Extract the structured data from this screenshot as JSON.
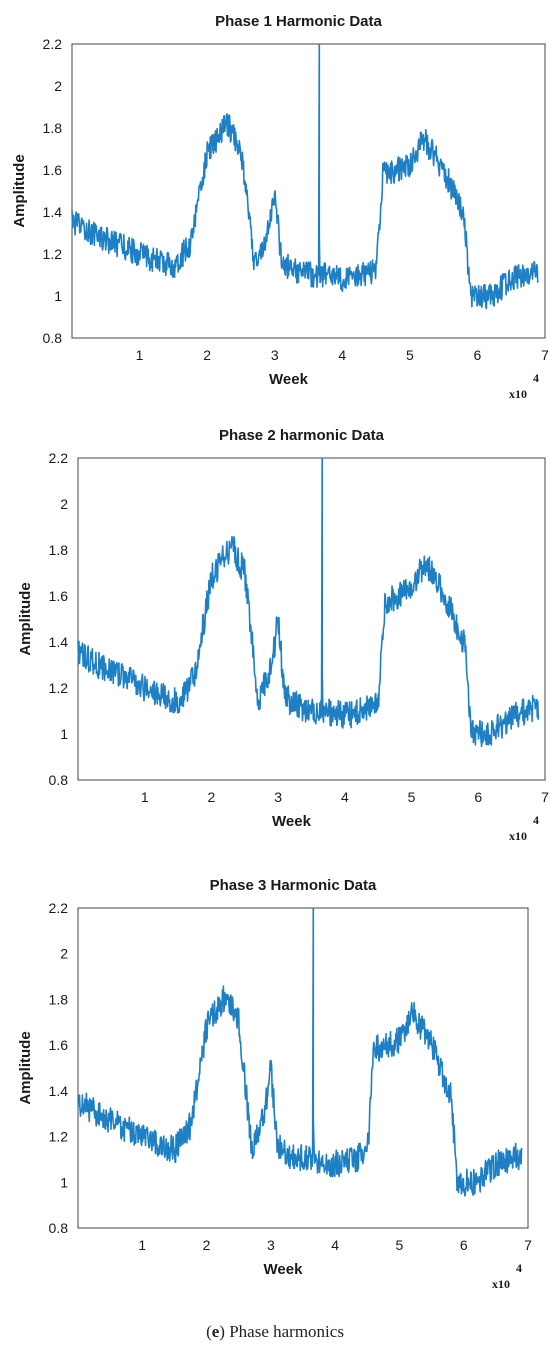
{
  "chart_data": [
    {
      "type": "line",
      "title": "Phase 1 Harmonic Data",
      "xlabel": "Week",
      "ylabel": "Amplitude",
      "x_multiplier": "x10",
      "x_multiplier_exp": "4",
      "xlim": [
        0,
        7
      ],
      "ylim": [
        0.8,
        2.2
      ],
      "xticks": [
        "1",
        "2",
        "3",
        "4",
        "5",
        "6",
        "7"
      ],
      "yticks": [
        "0.8",
        "1",
        "1.2",
        "1.4",
        "1.6",
        "1.8",
        "2",
        "2.2"
      ],
      "grid": false,
      "color": "#1f7fc4",
      "series": [
        {
          "x": [
            0,
            0.5,
            1.0,
            1.5,
            1.75,
            2.0,
            2.3,
            2.5,
            2.7,
            2.9,
            3.0,
            3.1,
            3.3,
            3.6,
            3.66,
            3.7,
            4.0,
            4.5,
            4.6,
            5.0,
            5.2,
            5.5,
            5.8,
            5.9,
            6.2,
            6.5,
            6.9
          ],
          "y": [
            1.35,
            1.27,
            1.2,
            1.14,
            1.25,
            1.68,
            1.82,
            1.7,
            1.15,
            1.3,
            1.5,
            1.16,
            1.12,
            1.1,
            2.2,
            1.1,
            1.08,
            1.12,
            1.58,
            1.62,
            1.75,
            1.6,
            1.38,
            1.0,
            1.0,
            1.08,
            1.12
          ]
        }
      ]
    },
    {
      "type": "line",
      "title": "Phase 2 harmonic Data",
      "xlabel": "Week",
      "ylabel": "Amplitude",
      "x_multiplier": "x10",
      "x_multiplier_exp": "4",
      "xlim": [
        0,
        7
      ],
      "ylim": [
        0.8,
        2.2
      ],
      "xticks": [
        "1",
        "2",
        "3",
        "4",
        "5",
        "6",
        "7"
      ],
      "yticks": [
        "0.8",
        "1",
        "1.2",
        "1.4",
        "1.6",
        "1.8",
        "2",
        "2.2"
      ],
      "grid": false,
      "color": "#1f7fc4",
      "series": [
        {
          "x": [
            0,
            0.5,
            1.0,
            1.5,
            1.75,
            2.0,
            2.3,
            2.5,
            2.7,
            2.9,
            3.0,
            3.1,
            3.3,
            3.6,
            3.66,
            3.7,
            4.0,
            4.5,
            4.6,
            5.0,
            5.2,
            5.5,
            5.8,
            5.9,
            6.2,
            6.5,
            6.9
          ],
          "y": [
            1.35,
            1.27,
            1.2,
            1.14,
            1.25,
            1.68,
            1.82,
            1.7,
            1.15,
            1.3,
            1.5,
            1.16,
            1.12,
            1.1,
            2.2,
            1.1,
            1.08,
            1.12,
            1.58,
            1.62,
            1.75,
            1.6,
            1.38,
            1.0,
            1.0,
            1.08,
            1.12
          ]
        }
      ]
    },
    {
      "type": "line",
      "title": "Phase 3 Harmonic Data",
      "xlabel": "Week",
      "ylabel": "Amplitude",
      "x_multiplier": "x10",
      "x_multiplier_exp": "4",
      "xlim": [
        0,
        7
      ],
      "ylim": [
        0.8,
        2.2
      ],
      "xticks": [
        "1",
        "2",
        "3",
        "4",
        "5",
        "6",
        "7"
      ],
      "yticks": [
        "0.8",
        "1",
        "1.2",
        "1.4",
        "1.6",
        "1.8",
        "2",
        "2.2"
      ],
      "grid": false,
      "color": "#1f7fc4",
      "series": [
        {
          "x": [
            0,
            0.5,
            1.0,
            1.5,
            1.75,
            2.0,
            2.3,
            2.5,
            2.7,
            2.9,
            3.0,
            3.1,
            3.3,
            3.6,
            3.66,
            3.7,
            4.0,
            4.5,
            4.6,
            5.0,
            5.2,
            5.5,
            5.8,
            5.9,
            6.2,
            6.5,
            6.9
          ],
          "y": [
            1.35,
            1.27,
            1.2,
            1.14,
            1.25,
            1.68,
            1.82,
            1.7,
            1.15,
            1.3,
            1.5,
            1.16,
            1.12,
            1.1,
            2.2,
            1.1,
            1.08,
            1.12,
            1.58,
            1.62,
            1.75,
            1.6,
            1.38,
            1.0,
            1.0,
            1.08,
            1.12
          ]
        }
      ]
    }
  ],
  "caption": {
    "letter": "e",
    "text": "Phase harmonics"
  }
}
